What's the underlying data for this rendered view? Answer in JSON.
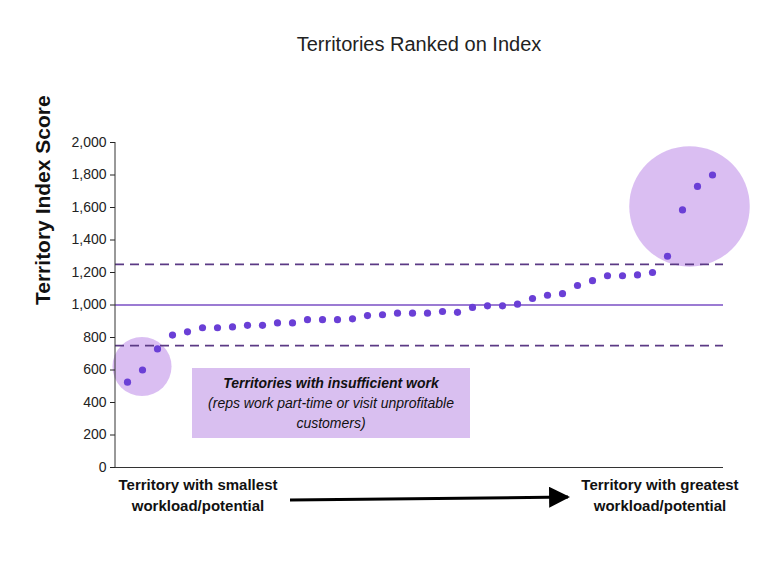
{
  "chart_data": {
    "type": "scatter",
    "title": "Territories Ranked on Index",
    "y_label": "Territory Index Score",
    "categories": [
      null,
      null,
      null,
      null,
      null,
      null,
      null,
      null,
      null,
      null,
      null,
      null,
      null,
      null,
      null,
      null,
      null,
      null,
      null,
      null,
      null,
      null,
      null,
      null,
      null,
      null,
      null,
      null,
      null,
      null,
      null,
      null,
      null,
      null,
      null,
      null,
      null,
      null,
      null,
      null
    ],
    "values": [
      525,
      600,
      730,
      815,
      835,
      860,
      860,
      865,
      875,
      875,
      890,
      890,
      910,
      910,
      910,
      915,
      935,
      940,
      950,
      950,
      950,
      960,
      955,
      985,
      995,
      995,
      1005,
      1040,
      1060,
      1070,
      1120,
      1150,
      1180,
      1180,
      1185,
      1200,
      1300,
      1585,
      1730,
      1800
    ],
    "color": "#6a3fd6",
    "marker": "circle",
    "ylim": [
      0,
      2000
    ],
    "yticks": [
      0,
      200,
      400,
      600,
      800,
      {
        "value": 1000,
        "label": "1,000"
      },
      {
        "value": 1200,
        "label": "1,200"
      },
      {
        "value": 1400,
        "label": "1,400"
      },
      {
        "value": 1600,
        "label": "1,600"
      },
      {
        "value": 1800,
        "label": "1,800"
      },
      {
        "value": 2000,
        "label": "2,000"
      }
    ],
    "tick_labels": "y",
    "grid": false,
    "reference_lines": [
      {
        "value": 750,
        "line_style": "dashed"
      },
      {
        "value": 1000,
        "line_style": "solid"
      },
      {
        "value": 1250,
        "line_style": "dashed"
      }
    ],
    "annotations": [
      {
        "text": "Territories with insufficient work",
        "subtext": "(reps work part-time or visit unprofitable customers)"
      }
    ],
    "x_start_label": "Territory with smallest workload/potential",
    "x_end_label": "Territory with greatest workload/potential"
  }
}
